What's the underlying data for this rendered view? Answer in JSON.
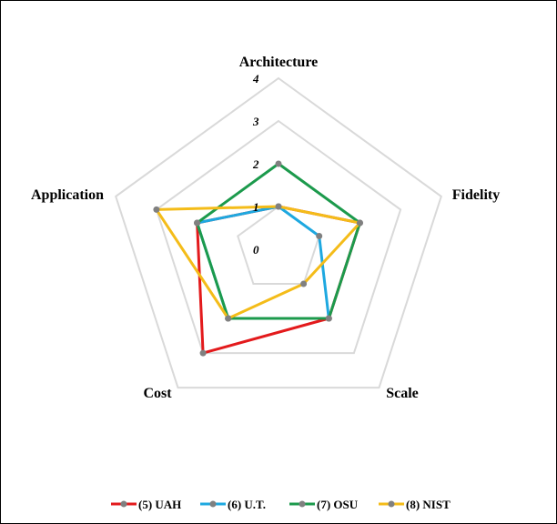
{
  "chart_data": {
    "type": "radar",
    "axes": [
      "Architecture",
      "Fidelity",
      "Scale",
      "Cost",
      "Application"
    ],
    "rlim": [
      0,
      4
    ],
    "ticks": [
      "0",
      "1",
      "2",
      "3",
      "4"
    ],
    "grid": true,
    "legend_position": "bottom",
    "series": [
      {
        "name": "(5) UAH",
        "color": "#e31a1c",
        "values": [
          1,
          2,
          2,
          3,
          2
        ]
      },
      {
        "name": "(6) U.T.",
        "color": "#1ea8e0",
        "values": [
          1,
          1,
          2,
          2,
          2
        ]
      },
      {
        "name": "(7) OSU",
        "color": "#1c9a4c",
        "values": [
          2,
          2,
          2,
          2,
          2
        ]
      },
      {
        "name": "(8) NIST",
        "color": "#f4bc19",
        "values": [
          1,
          2,
          1,
          2,
          3
        ]
      }
    ],
    "marker_color": "#808080",
    "grid_color": "#d9d9d9"
  }
}
